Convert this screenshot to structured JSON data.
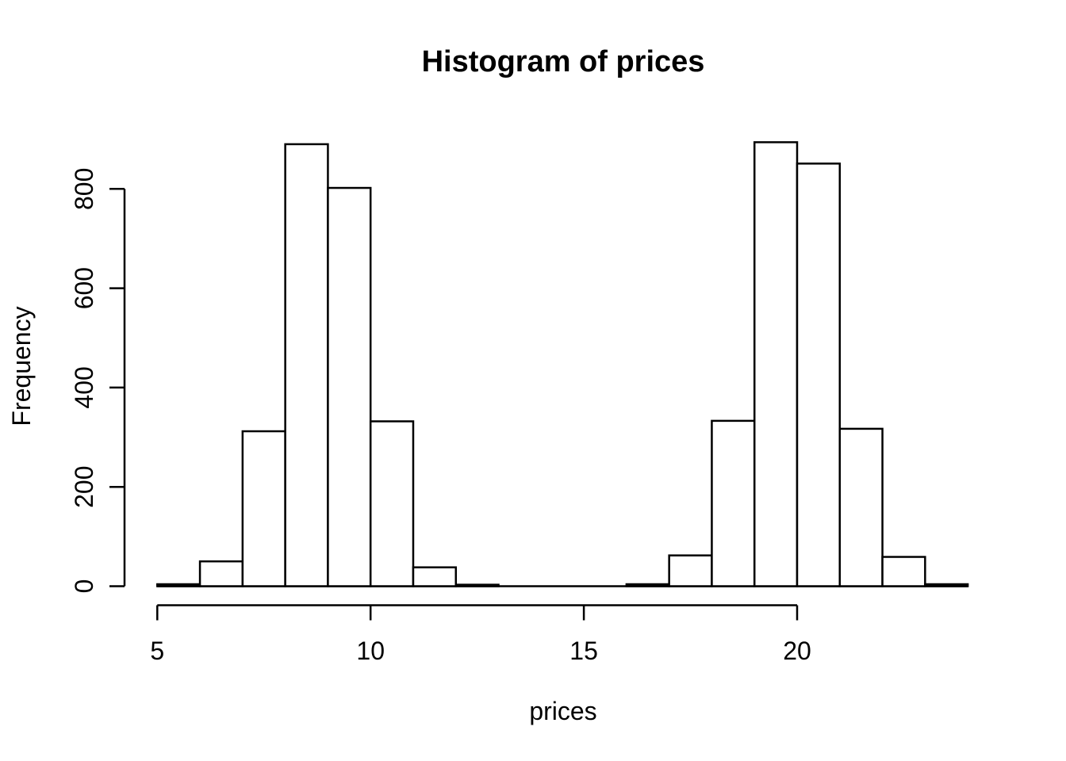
{
  "chart_data": {
    "type": "bar",
    "subtype": "histogram",
    "title": "Histogram of prices",
    "xlabel": "prices",
    "ylabel": "Frequency",
    "bin_breaks": [
      5,
      6,
      7,
      8,
      9,
      10,
      11,
      12,
      13,
      14,
      15,
      16,
      17,
      18,
      19,
      20,
      21,
      22,
      23,
      24
    ],
    "bin_counts": [
      4,
      50,
      312,
      890,
      802,
      332,
      38,
      3,
      0,
      0,
      0,
      4,
      62,
      333,
      894,
      851,
      317,
      59,
      4
    ],
    "x_ticks": [
      "5",
      "10",
      "15",
      "20"
    ],
    "x_tick_values": [
      5,
      10,
      15,
      20
    ],
    "y_ticks": [
      "0",
      "200",
      "400",
      "600",
      "800"
    ],
    "y_tick_values": [
      0,
      200,
      400,
      600,
      800
    ],
    "xlim": [
      5,
      24
    ],
    "ylim": [
      0,
      900
    ],
    "grid": false,
    "legend": false,
    "colors": {
      "bar_fill": "#ffffff",
      "bar_stroke": "#000000",
      "axis": "#000000",
      "text": "#000000",
      "background": "#ffffff"
    }
  }
}
